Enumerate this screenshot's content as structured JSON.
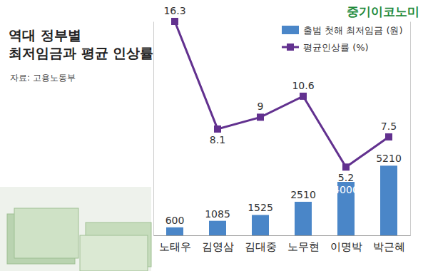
{
  "chart_data": {
    "type": "bar",
    "title": [
      "역대 정부별",
      "최저임금과 평균 인상률"
    ],
    "source": "자료: 고용노동부",
    "annotations": [
      "중기이코노미"
    ],
    "categories": [
      "노태우",
      "김영삼",
      "김대중",
      "노무현",
      "이명박",
      "박근혜"
    ],
    "series": [
      {
        "name": "출범 첫해 최저임금 (원)",
        "type": "bar",
        "color": "#4a86c8",
        "values": [
          600,
          1085,
          1525,
          2510,
          4000,
          5210
        ]
      },
      {
        "name": "평균인상률 (%)",
        "type": "line",
        "color": "#62318f",
        "marker": "square",
        "axis": "y2",
        "values": [
          16.3,
          8.1,
          9,
          10.6,
          5.2,
          7.5
        ]
      }
    ],
    "ylim": [
      0,
      16000
    ],
    "y2lim": [
      0,
      16.3
    ],
    "data_labels": true,
    "tick_labels": false,
    "legend": "top-right",
    "grid": false
  }
}
